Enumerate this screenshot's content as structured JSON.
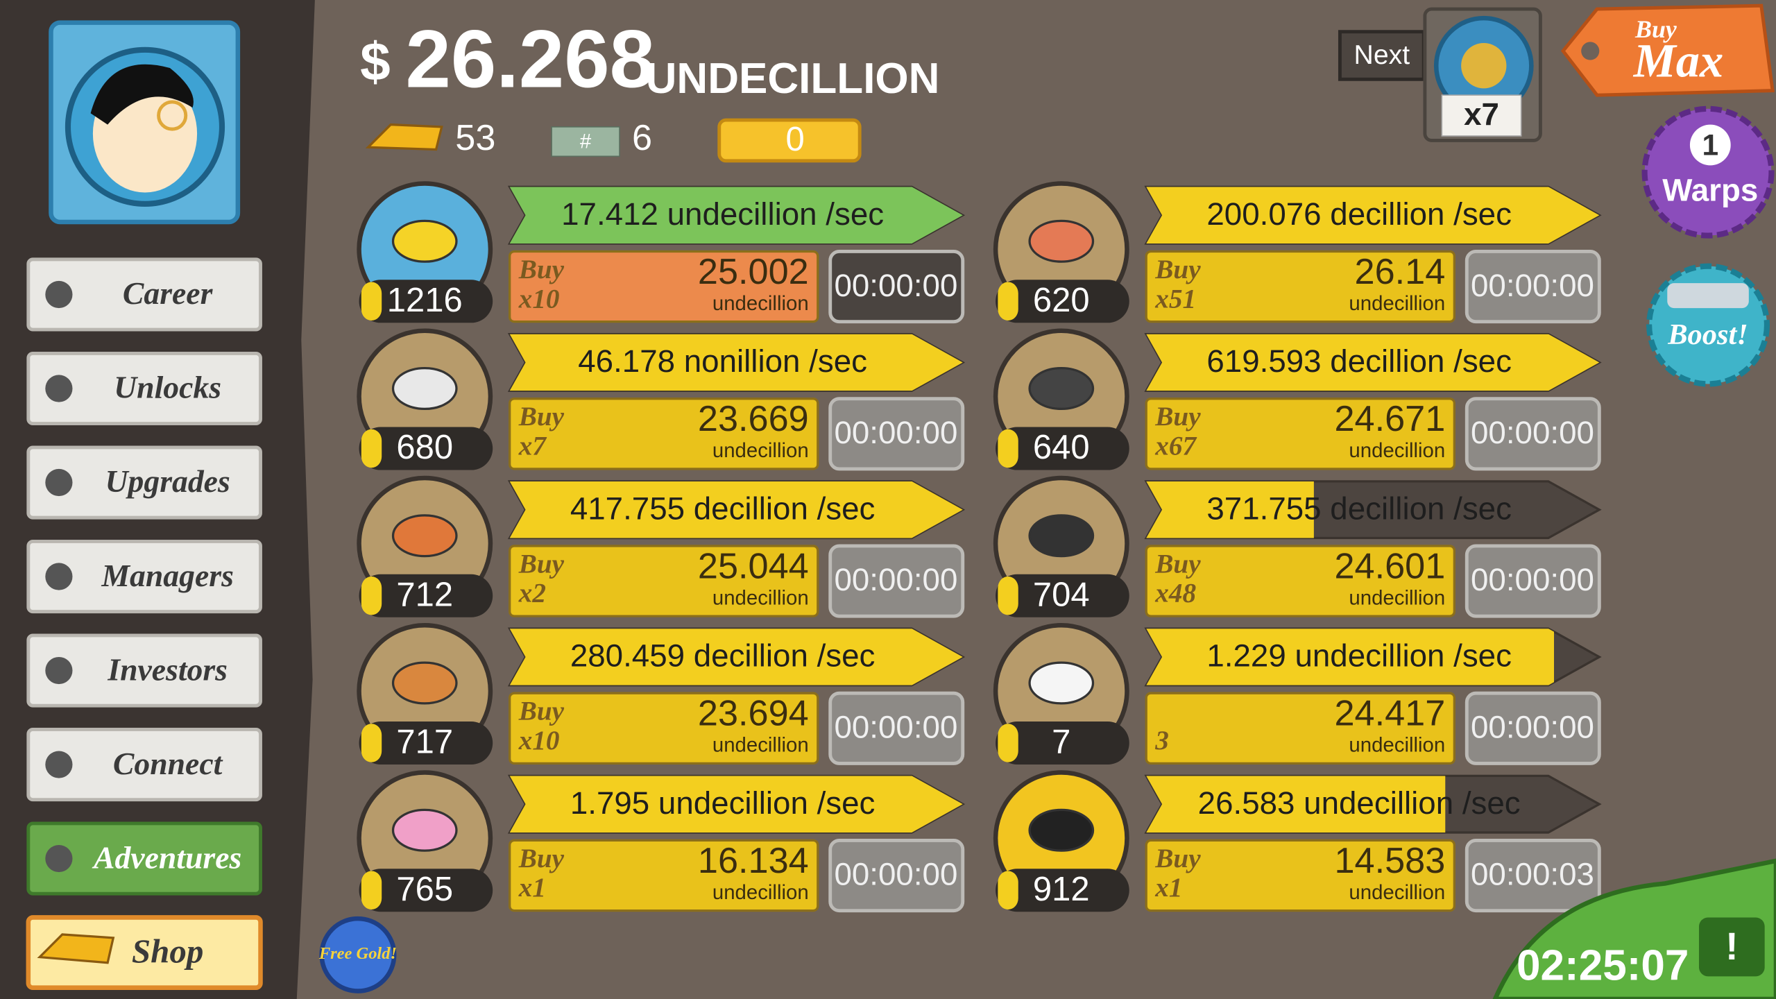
{
  "header": {
    "currency_symbol": "$",
    "money": "26.268",
    "money_unit": "UNDECILLION",
    "gold": "53",
    "megabucks": "6",
    "gold_tickets": "0"
  },
  "top_right": {
    "next_label": "Next",
    "manager_multiplier": "x7",
    "buy_max": {
      "line1": "Buy",
      "line2": "Max"
    },
    "warps": {
      "count": "1",
      "label": "Warps"
    },
    "boost": "Boost!"
  },
  "sidebar": {
    "buttons": [
      "Career",
      "Unlocks",
      "Upgrades",
      "Managers",
      "Investors",
      "Connect",
      "Adventures"
    ],
    "shop": "Shop",
    "free_gold": "Free Gold!"
  },
  "businesses": [
    {
      "owned": "1216",
      "rate": "17.412 undecillion /sec",
      "buy_label": "Buy",
      "buy_amount": "x10",
      "cost": "25.002",
      "cost_unit": "undecillion",
      "timer": "00:00:00",
      "progress": 1,
      "bar_color": "#7cc45a",
      "buy_color": "#ec8a4c"
    },
    {
      "owned": "680",
      "rate": "46.178 nonillion /sec",
      "buy_label": "Buy",
      "buy_amount": "x7",
      "cost": "23.669",
      "cost_unit": "undecillion",
      "timer": "00:00:00",
      "progress": 1,
      "bar_color": "#f3cf1f",
      "buy_color": "#e9c21b"
    },
    {
      "owned": "712",
      "rate": "417.755 decillion /sec",
      "buy_label": "Buy",
      "buy_amount": "x2",
      "cost": "25.044",
      "cost_unit": "undecillion",
      "timer": "00:00:00",
      "progress": 1,
      "bar_color": "#f3cf1f",
      "buy_color": "#e9c21b"
    },
    {
      "owned": "717",
      "rate": "280.459 decillion /sec",
      "buy_label": "Buy",
      "buy_amount": "x10",
      "cost": "23.694",
      "cost_unit": "undecillion",
      "timer": "00:00:00",
      "progress": 1,
      "bar_color": "#f3cf1f",
      "buy_color": "#e9c21b"
    },
    {
      "owned": "765",
      "rate": "1.795 undecillion /sec",
      "buy_label": "Buy",
      "buy_amount": "x1",
      "cost": "16.134",
      "cost_unit": "undecillion",
      "timer": "00:00:00",
      "progress": 1,
      "bar_color": "#f3cf1f",
      "buy_color": "#e9c21b"
    },
    {
      "owned": "620",
      "rate": "200.076 decillion /sec",
      "buy_label": "Buy",
      "buy_amount": "x51",
      "cost": "26.14",
      "cost_unit": "undecillion",
      "timer": "00:00:00",
      "progress": 1,
      "bar_color": "#f3cf1f",
      "buy_color": "#e9c21b"
    },
    {
      "owned": "640",
      "rate": "619.593 decillion /sec",
      "buy_label": "Buy",
      "buy_amount": "x67",
      "cost": "24.671",
      "cost_unit": "undecillion",
      "timer": "00:00:00",
      "progress": 1,
      "bar_color": "#f3cf1f",
      "buy_color": "#e9c21b"
    },
    {
      "owned": "704",
      "rate": "371.755 decillion /sec",
      "buy_label": "Buy",
      "buy_amount": "x48",
      "cost": "24.601",
      "cost_unit": "undecillion",
      "timer": "00:00:00",
      "progress": 0.37,
      "bar_color": "#f3cf1f",
      "buy_color": "#e9c21b"
    },
    {
      "owned": "7",
      "rate": "1.229 undecillion /sec",
      "buy_amount": "3",
      "cost": "24.417",
      "cost_unit": "undecillion",
      "timer": "00:00:00",
      "progress": 0.9,
      "bar_color": "#f3cf1f",
      "buy_color": "#e9c21b"
    },
    {
      "owned": "912",
      "rate": "26.583 undecillion /sec",
      "buy_label": "Buy",
      "buy_amount": "x1",
      "cost": "14.583",
      "cost_unit": "undecillion",
      "timer": "00:00:03",
      "progress": 0.66,
      "bar_color": "#f3cf1f",
      "buy_color": "#e9c21b"
    }
  ],
  "event_timer": "02:25:07"
}
